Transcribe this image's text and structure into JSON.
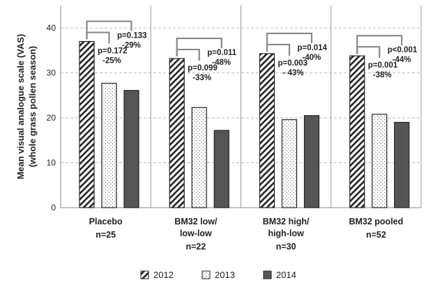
{
  "chart_data": {
    "type": "bar",
    "ylabel": [
      "Mean visual analogue scale (VAS)",
      "(whole grass pollen season)"
    ],
    "ylim": [
      0,
      45
    ],
    "yticks": [
      0,
      10,
      20,
      30,
      40
    ],
    "grid": true,
    "legend_position": "bottom",
    "groups": [
      {
        "label": [
          "Placebo"
        ],
        "n": "n=25"
      },
      {
        "label": [
          "BM32  low/",
          "low-low"
        ],
        "n": "n=22"
      },
      {
        "label": [
          "BM32 high/",
          "high-low"
        ],
        "n": "n=30"
      },
      {
        "label": [
          "BM32 pooled"
        ],
        "n": "n=52"
      }
    ],
    "series": [
      {
        "name": "2012",
        "values": [
          37.0,
          33.2,
          34.3,
          33.8
        ],
        "pattern": "hatched"
      },
      {
        "name": "2013",
        "values": [
          27.7,
          22.3,
          19.6,
          20.8
        ],
        "pattern": "dotted"
      },
      {
        "name": "2014",
        "values": [
          26.1,
          17.2,
          20.5,
          19.0
        ],
        "pattern": "solid"
      }
    ],
    "annotations": [
      {
        "group": 0,
        "compare": "2013",
        "lines": [
          "p=0.172",
          "-25%"
        ]
      },
      {
        "group": 0,
        "compare": "2014",
        "lines": [
          "p=0.133",
          "-29%"
        ]
      },
      {
        "group": 1,
        "compare": "2013",
        "lines": [
          "p=0.099",
          "-33%"
        ]
      },
      {
        "group": 1,
        "compare": "2014",
        "lines": [
          "p=0.011",
          "-48%"
        ]
      },
      {
        "group": 2,
        "compare": "2013",
        "lines": [
          "p=0.003",
          "- 43%"
        ]
      },
      {
        "group": 2,
        "compare": "2014",
        "lines": [
          "p=0.014",
          "-40%"
        ]
      },
      {
        "group": 3,
        "compare": "2013",
        "lines": [
          "p=0.001",
          "-38%"
        ]
      },
      {
        "group": 3,
        "compare": "2014",
        "lines": [
          "p<0.001",
          "-44%"
        ]
      }
    ],
    "colors": {
      "solid": "#555555",
      "bar_edge": "#222222",
      "bracket": "#888888",
      "grid": "#bbbbbb"
    }
  }
}
